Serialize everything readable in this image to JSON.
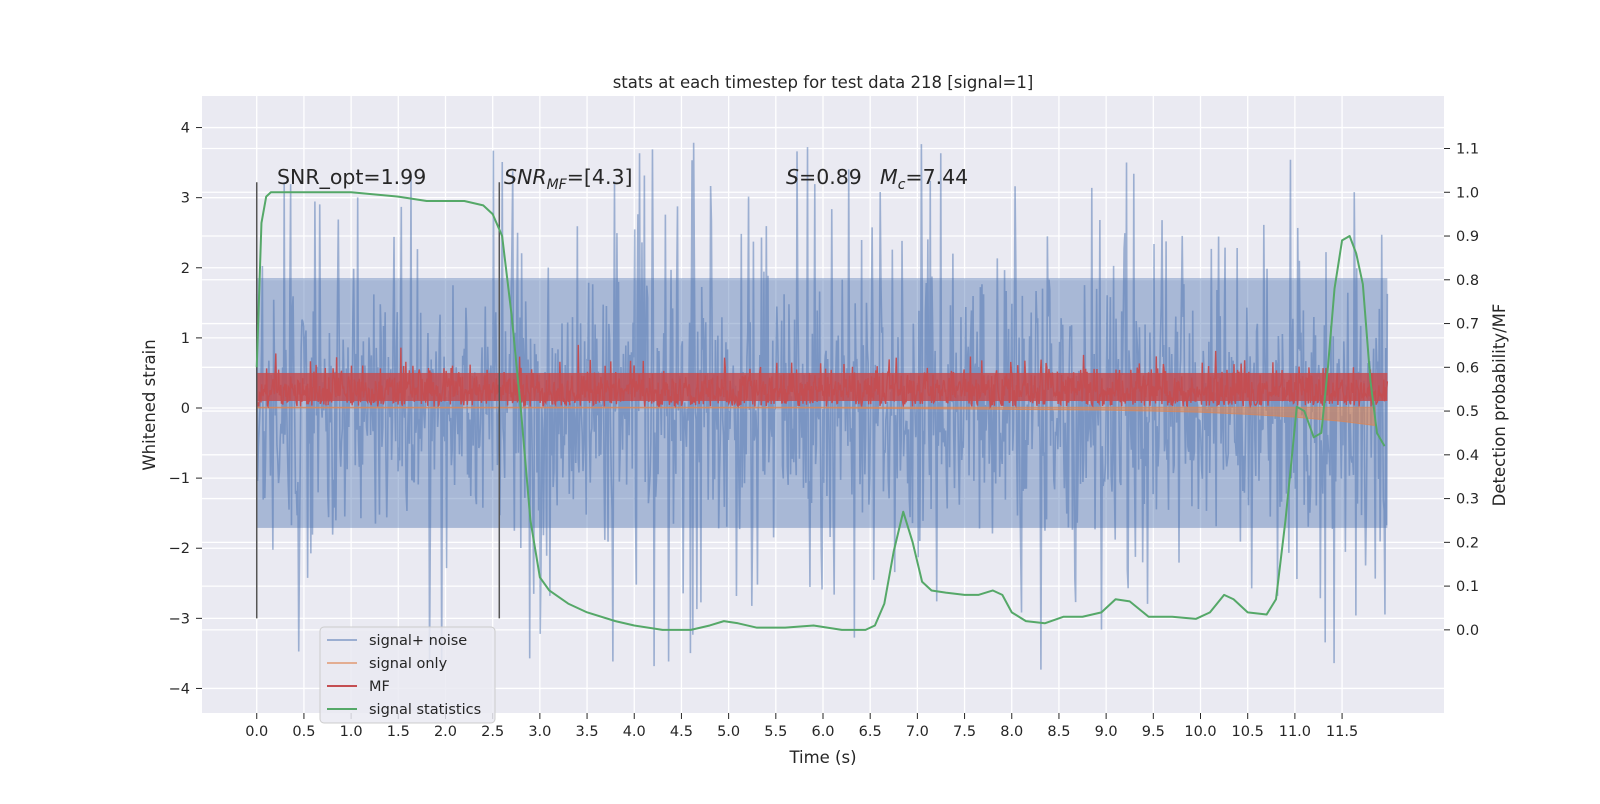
{
  "chart_data": {
    "type": "line",
    "title": "stats at each timestep for test data 218 [signal=1]",
    "xlabel": "Time (s)",
    "ylabel_left": "Whitened strain",
    "ylabel_right": "Detection probability/MF",
    "xlim": [
      -0.58,
      12.58
    ],
    "ylim_left": [
      -4.35,
      4.45
    ],
    "ylim_right": [
      -0.19,
      1.22
    ],
    "x_ticks": [
      "0.0",
      "0.5",
      "1.0",
      "1.5",
      "2.0",
      "2.5",
      "3.0",
      "3.5",
      "4.0",
      "4.5",
      "5.0",
      "5.5",
      "6.0",
      "6.5",
      "7.0",
      "7.5",
      "8.0",
      "8.5",
      "9.0",
      "9.5",
      "10.0",
      "10.5",
      "11.0",
      "11.5"
    ],
    "y_ticks_left": [
      "−4",
      "−3",
      "−2",
      "−1",
      "0",
      "1",
      "2",
      "3",
      "4"
    ],
    "y_ticks_right": [
      "0.0",
      "0.1",
      "0.2",
      "0.3",
      "0.4",
      "0.5",
      "0.6",
      "0.7",
      "0.8",
      "0.9",
      "1.0",
      "1.1"
    ],
    "grid": true,
    "legend_position": "lower-left",
    "annotations": {
      "snr_opt": "SNR_opt=1.99",
      "snr_mf_main": "SNR",
      "snr_mf_sub": "MF",
      "snr_mf_rest": "=[4.3]",
      "s_var": "S",
      "s_rest": "=0.89",
      "mc_var": "M",
      "mc_sub": "c",
      "mc_rest": "=7.44"
    },
    "vertical_markers_x": [
      0.0,
      2.57
    ],
    "vertical_markers_yrange": [
      -3.0,
      3.22
    ],
    "series": [
      {
        "name": "signal+ noise",
        "color": "#4c72b0",
        "opacity": 0.5,
        "axis": "left",
        "x_range": [
          0.0,
          11.98
        ],
        "typical_envelope": [
          -1.8,
          1.95
        ],
        "max": 4.1,
        "min": -3.9
      },
      {
        "name": "signal only",
        "color": "#dd8452",
        "opacity": 0.6,
        "axis": "left",
        "x": [
          0.0,
          6.0,
          8.0,
          9.0,
          10.0,
          10.5,
          11.0,
          11.5,
          11.85
        ],
        "y": [
          0.0,
          0.0,
          0.02,
          0.03,
          0.06,
          0.09,
          0.13,
          0.19,
          0.25
        ]
      },
      {
        "name": "MF",
        "color": "#c44e52",
        "axis": "left",
        "x_range": [
          0.0,
          11.98
        ],
        "typical_envelope": [
          0.02,
          0.6
        ],
        "max": 0.9
      },
      {
        "name": "signal statistics",
        "color": "#55a868",
        "axis": "right",
        "x": [
          0.0,
          0.05,
          0.1,
          0.15,
          0.2,
          0.3,
          0.5,
          1.0,
          1.5,
          1.8,
          2.0,
          2.2,
          2.4,
          2.5,
          2.6,
          2.7,
          2.8,
          2.9,
          3.0,
          3.1,
          3.3,
          3.5,
          3.8,
          4.0,
          4.3,
          4.6,
          4.8,
          4.95,
          5.1,
          5.3,
          5.6,
          5.9,
          6.2,
          6.45,
          6.55,
          6.65,
          6.75,
          6.85,
          6.95,
          7.05,
          7.15,
          7.3,
          7.5,
          7.65,
          7.8,
          7.9,
          8.0,
          8.15,
          8.35,
          8.55,
          8.75,
          8.95,
          9.1,
          9.25,
          9.45,
          9.7,
          9.95,
          10.1,
          10.25,
          10.35,
          10.5,
          10.7,
          10.8,
          10.9,
          10.97,
          11.02,
          11.1,
          11.2,
          11.28,
          11.35,
          11.42,
          11.5,
          11.58,
          11.65,
          11.72,
          11.8,
          11.87,
          11.95
        ],
        "y": [
          0.6,
          0.93,
          0.99,
          1.0,
          1.0,
          1.0,
          1.0,
          1.0,
          0.99,
          0.98,
          0.98,
          0.98,
          0.97,
          0.95,
          0.9,
          0.72,
          0.5,
          0.25,
          0.12,
          0.09,
          0.06,
          0.04,
          0.02,
          0.01,
          0.0,
          0.0,
          0.01,
          0.02,
          0.015,
          0.005,
          0.005,
          0.01,
          0.0,
          0.0,
          0.01,
          0.06,
          0.18,
          0.27,
          0.2,
          0.11,
          0.09,
          0.085,
          0.08,
          0.08,
          0.09,
          0.08,
          0.04,
          0.02,
          0.015,
          0.03,
          0.03,
          0.04,
          0.07,
          0.065,
          0.03,
          0.03,
          0.025,
          0.04,
          0.08,
          0.07,
          0.04,
          0.035,
          0.07,
          0.25,
          0.4,
          0.51,
          0.5,
          0.44,
          0.45,
          0.6,
          0.78,
          0.89,
          0.9,
          0.86,
          0.79,
          0.57,
          0.45,
          0.42
        ]
      }
    ]
  }
}
